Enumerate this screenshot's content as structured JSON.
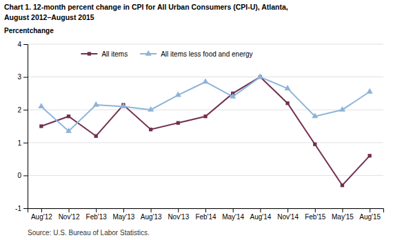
{
  "chart_data": {
    "type": "line",
    "title": "Chart 1. 12-month percent change in CPI for All Urban Consumers (CPI-U), Atlanta,",
    "subtitle": "August 2012–August 2015",
    "y_label": "Percentchange",
    "annotations": [
      "Source: U.S. Bureau of Labor Statistics."
    ],
    "categories": [
      "Aug'12",
      "Nov'12",
      "Feb'13",
      "May'13",
      "Aug'13",
      "Nov'13",
      "Feb'14",
      "May'14",
      "Aug'14",
      "Nov'14",
      "Feb'15",
      "May'15",
      "Aug'15"
    ],
    "series": [
      {
        "name": "All items",
        "color": "#722F4F",
        "marker": "square",
        "values": [
          1.5,
          1.8,
          1.2,
          2.15,
          1.4,
          1.6,
          1.8,
          2.5,
          3.0,
          2.2,
          0.95,
          -0.3,
          0.6
        ]
      },
      {
        "name": "All items less food and energy",
        "color": "#8DB4D9",
        "marker": "triangle",
        "values": [
          2.1,
          1.35,
          2.15,
          2.1,
          2.0,
          2.45,
          2.85,
          2.4,
          3.0,
          2.65,
          1.8,
          2.0,
          2.55
        ]
      }
    ],
    "ylim": [
      -1,
      4
    ],
    "yticks": [
      -1,
      0,
      1,
      2,
      3,
      4
    ],
    "grid": true,
    "legend": "top"
  }
}
